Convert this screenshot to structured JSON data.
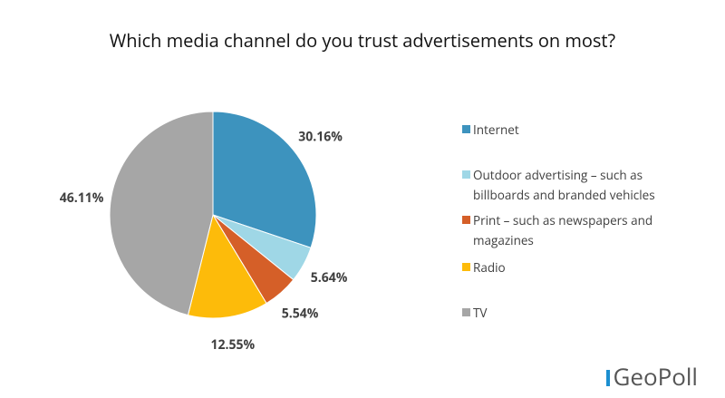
{
  "chart_data": {
    "type": "pie",
    "title": "Which media channel do you trust advertisements on most?",
    "categories": [
      "Internet",
      "Outdoor advertising – such as billboards and branded vehicles",
      "Print – such as newspapers and magazines",
      "Radio",
      "TV"
    ],
    "values": [
      30.16,
      5.64,
      5.54,
      12.55,
      46.11
    ],
    "value_labels": [
      "30.16%",
      "5.64%",
      "5.54%",
      "12.55%",
      "46.11%"
    ],
    "colors": [
      "#3d93be",
      "#9fd7e6",
      "#d55f28",
      "#fdbb0a",
      "#a6a6a6"
    ],
    "legend": "right"
  },
  "logo": "GeoPoll"
}
